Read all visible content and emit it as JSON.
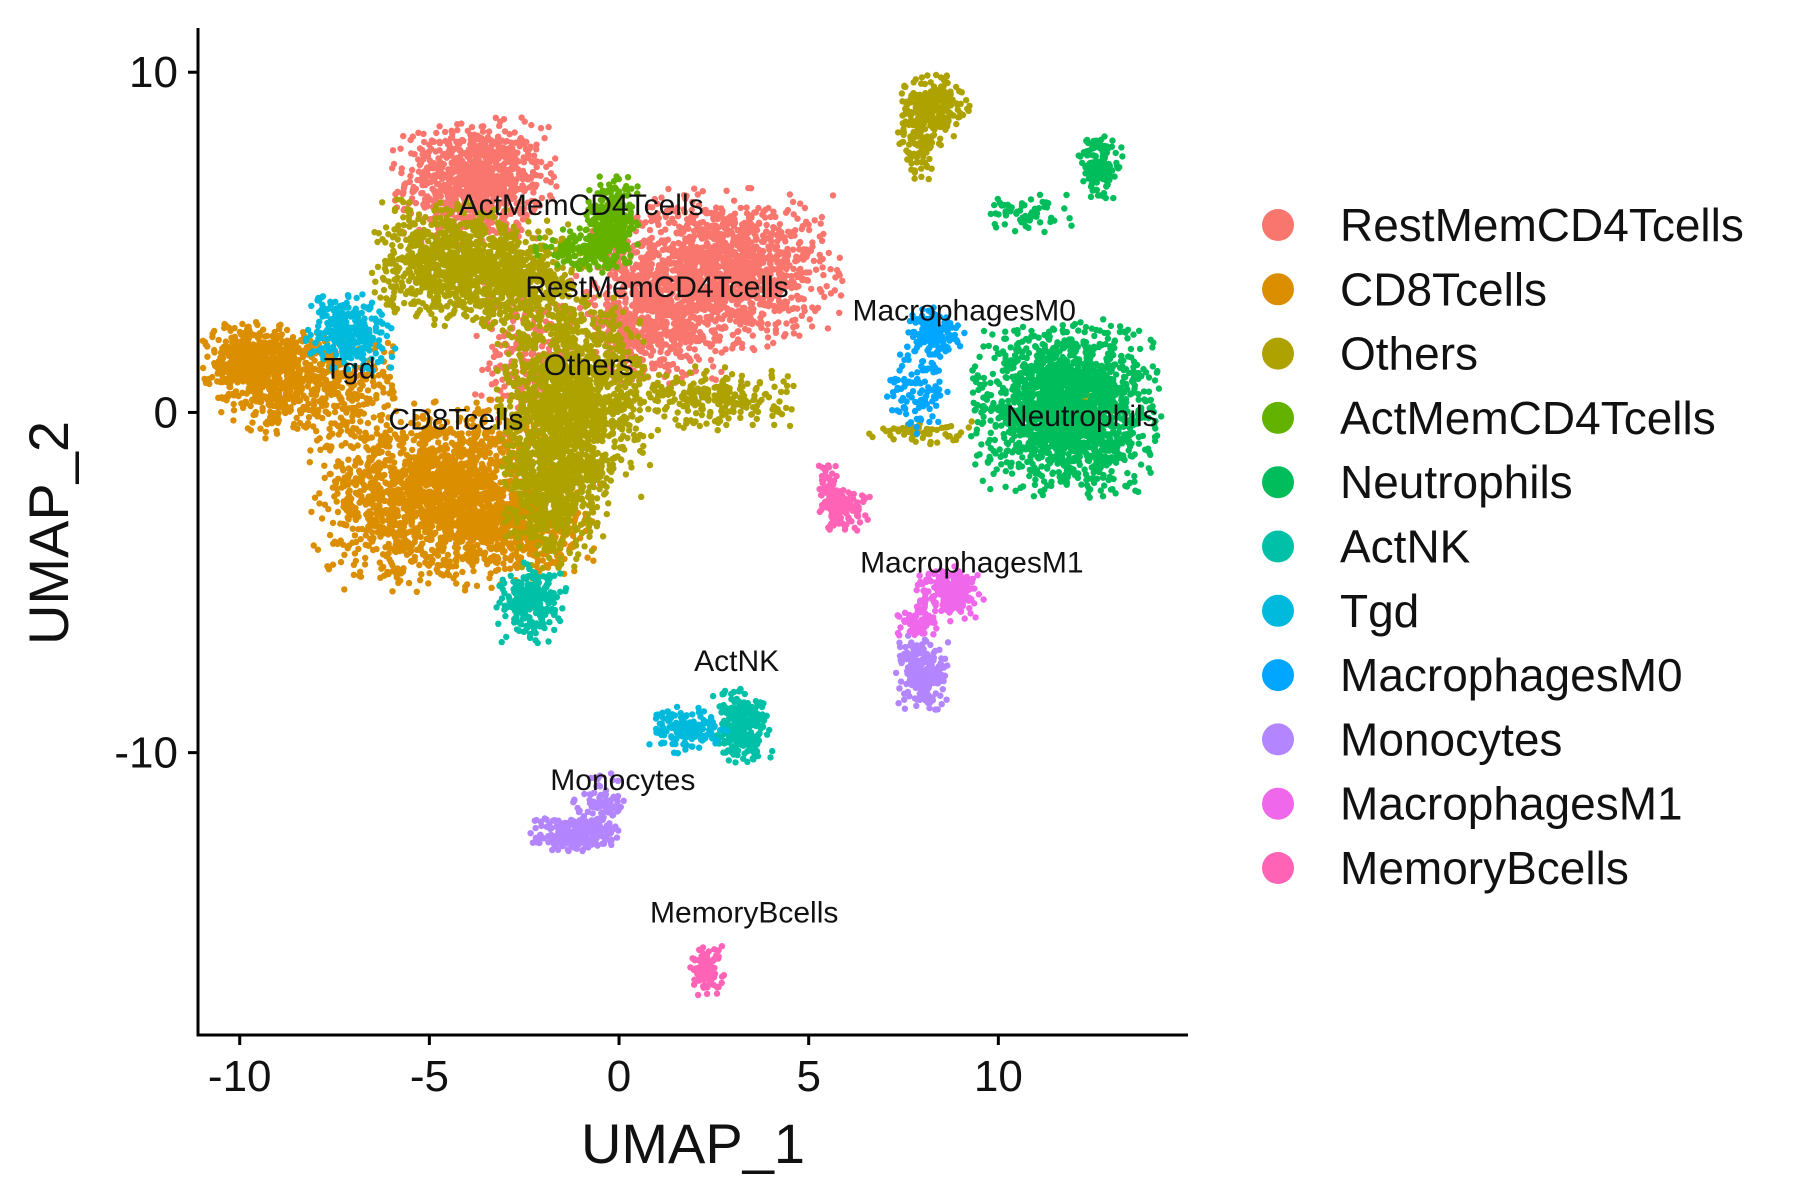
{
  "chart_data": {
    "type": "scatter",
    "title": "",
    "xlabel": "UMAP_1",
    "ylabel": "UMAP_2",
    "xlim": [
      -11.1,
      15.0
    ],
    "ylim": [
      -18.3,
      11.3
    ],
    "xticks": [
      -10,
      -5,
      0,
      5,
      10
    ],
    "yticks": [
      -10,
      0,
      10
    ],
    "xtick_labels": [
      "-10",
      "-5",
      "0",
      "5",
      "10"
    ],
    "ytick_labels": [
      "-10",
      "0",
      "10"
    ],
    "grid": false,
    "legend_position": "right",
    "series": [
      {
        "name": "RestMemCD4Tcells",
        "color": "#F8766D"
      },
      {
        "name": "CD8Tcells",
        "color": "#DB8E00"
      },
      {
        "name": "Others",
        "color": "#AEA200"
      },
      {
        "name": "ActMemCD4Tcells",
        "color": "#64B200"
      },
      {
        "name": "Neutrophils",
        "color": "#00BD5C"
      },
      {
        "name": "ActNK",
        "color": "#00C1A7"
      },
      {
        "name": "Tgd",
        "color": "#00BADE"
      },
      {
        "name": "MacrophagesM0",
        "color": "#00A6FF"
      },
      {
        "name": "Monocytes",
        "color": "#B385FF"
      },
      {
        "name": "MacrophagesM1",
        "color": "#EF67EB"
      },
      {
        "name": "MemoryBcells",
        "color": "#FF63B6"
      }
    ],
    "clusters": [
      {
        "series": "RestMemCD4Tcells",
        "x": -3.8,
        "y": 6.8,
        "sx": 0.9,
        "sy": 0.8,
        "n": 900
      },
      {
        "series": "RestMemCD4Tcells",
        "x": 2.6,
        "y": 4.2,
        "sx": 1.4,
        "sy": 1.0,
        "n": 1500
      },
      {
        "series": "RestMemCD4Tcells",
        "x": 0.9,
        "y": 2.6,
        "sx": 1.0,
        "sy": 0.8,
        "n": 500
      },
      {
        "series": "RestMemCD4Tcells",
        "x": -2.4,
        "y": 1.5,
        "sx": 0.6,
        "sy": 1.0,
        "n": 250
      },
      {
        "series": "CD8Tcells",
        "x": -9.6,
        "y": 1.4,
        "sx": 0.6,
        "sy": 0.6,
        "n": 500
      },
      {
        "series": "CD8Tcells",
        "x": -8.0,
        "y": 0.8,
        "sx": 1.0,
        "sy": 0.7,
        "n": 500
      },
      {
        "series": "CD8Tcells",
        "x": -4.8,
        "y": -2.4,
        "sx": 1.4,
        "sy": 1.2,
        "n": 1800
      },
      {
        "series": "CD8Tcells",
        "x": -2.6,
        "y": -3.4,
        "sx": 0.9,
        "sy": 0.6,
        "n": 400
      },
      {
        "series": "Others",
        "x": -4.6,
        "y": 4.4,
        "sx": 0.8,
        "sy": 0.8,
        "n": 700
      },
      {
        "series": "Others",
        "x": -2.6,
        "y": 4.0,
        "sx": 0.8,
        "sy": 0.7,
        "n": 500
      },
      {
        "series": "Others",
        "x": -1.2,
        "y": 0.4,
        "sx": 0.9,
        "sy": 1.3,
        "n": 1400
      },
      {
        "series": "Others",
        "x": -1.7,
        "y": -2.2,
        "sx": 0.6,
        "sy": 1.0,
        "n": 600
      },
      {
        "series": "Others",
        "x": 2.6,
        "y": 0.4,
        "sx": 1.0,
        "sy": 0.4,
        "n": 250
      },
      {
        "series": "Others",
        "x": 8.3,
        "y": 9.0,
        "sx": 0.4,
        "sy": 0.4,
        "n": 220
      },
      {
        "series": "Others",
        "x": 7.9,
        "y": 8.0,
        "sx": 0.25,
        "sy": 0.5,
        "n": 90
      },
      {
        "series": "Others",
        "x": 8.0,
        "y": -0.6,
        "sx": 0.6,
        "sy": 0.15,
        "n": 60
      },
      {
        "series": "Others",
        "x": 12.7,
        "y": 0.5,
        "sx": 0.3,
        "sy": 0.3,
        "n": 40
      },
      {
        "series": "ActMemCD4Tcells",
        "x": -0.2,
        "y": 5.5,
        "sx": 0.3,
        "sy": 0.6,
        "n": 300
      },
      {
        "series": "ActMemCD4Tcells",
        "x": -1.0,
        "y": 4.8,
        "sx": 0.5,
        "sy": 0.3,
        "n": 120
      },
      {
        "series": "Neutrophils",
        "x": 11.8,
        "y": 0.1,
        "sx": 1.05,
        "sy": 1.1,
        "n": 1900
      },
      {
        "series": "Neutrophils",
        "x": 12.7,
        "y": 7.2,
        "sx": 0.25,
        "sy": 0.45,
        "n": 150
      },
      {
        "series": "Neutrophils",
        "x": 10.8,
        "y": 5.9,
        "sx": 0.6,
        "sy": 0.3,
        "n": 60
      },
      {
        "series": "ActNK",
        "x": -2.3,
        "y": -5.6,
        "sx": 0.4,
        "sy": 0.5,
        "n": 260
      },
      {
        "series": "ActNK",
        "x": 3.2,
        "y": -9.2,
        "sx": 0.35,
        "sy": 0.5,
        "n": 260
      },
      {
        "series": "Tgd",
        "x": -7.1,
        "y": 2.3,
        "sx": 0.5,
        "sy": 0.5,
        "n": 300
      },
      {
        "series": "Tgd",
        "x": 1.8,
        "y": -9.3,
        "sx": 0.45,
        "sy": 0.3,
        "n": 150
      },
      {
        "series": "MacrophagesM0",
        "x": 8.3,
        "y": 2.4,
        "sx": 0.35,
        "sy": 0.3,
        "n": 160
      },
      {
        "series": "MacrophagesM0",
        "x": 7.9,
        "y": 0.7,
        "sx": 0.35,
        "sy": 0.6,
        "n": 110
      },
      {
        "series": "Monocytes",
        "x": -1.2,
        "y": -12.4,
        "sx": 0.55,
        "sy": 0.22,
        "n": 240
      },
      {
        "series": "Monocytes",
        "x": -0.5,
        "y": -11.5,
        "sx": 0.3,
        "sy": 0.4,
        "n": 90
      },
      {
        "series": "Monocytes",
        "x": 8.0,
        "y": -7.7,
        "sx": 0.3,
        "sy": 0.5,
        "n": 230
      },
      {
        "series": "MacrophagesM1",
        "x": 8.7,
        "y": -5.3,
        "sx": 0.4,
        "sy": 0.35,
        "n": 190
      },
      {
        "series": "MacrophagesM1",
        "x": 7.9,
        "y": -6.1,
        "sx": 0.25,
        "sy": 0.25,
        "n": 70
      },
      {
        "series": "MemoryBcells",
        "x": 5.9,
        "y": -2.8,
        "sx": 0.3,
        "sy": 0.3,
        "n": 120
      },
      {
        "series": "MemoryBcells",
        "x": 5.5,
        "y": -2.1,
        "sx": 0.15,
        "sy": 0.4,
        "n": 40
      },
      {
        "series": "MemoryBcells",
        "x": 2.3,
        "y": -16.4,
        "sx": 0.2,
        "sy": 0.35,
        "n": 110
      }
    ],
    "annotations": [
      {
        "text": "ActMemCD4Tcells",
        "x": -1.0,
        "y": 5.8
      },
      {
        "text": "RestMemCD4Tcells",
        "x": 1.0,
        "y": 3.4
      },
      {
        "text": "MacrophagesM0",
        "x": 9.1,
        "y": 2.7
      },
      {
        "text": "Tgd",
        "x": -7.1,
        "y": 1.0
      },
      {
        "text": "Others",
        "x": -0.8,
        "y": 1.1
      },
      {
        "text": "CD8Tcells",
        "x": -4.3,
        "y": -0.5
      },
      {
        "text": "Neutrophils",
        "x": 12.2,
        "y": -0.4
      },
      {
        "text": "MacrophagesM1",
        "x": 9.3,
        "y": -4.7
      },
      {
        "text": "ActNK",
        "x": 3.1,
        "y": -7.6
      },
      {
        "text": "Monocytes",
        "x": 0.1,
        "y": -11.1
      },
      {
        "text": "MemoryBcells",
        "x": 3.3,
        "y": -15.0
      }
    ]
  }
}
